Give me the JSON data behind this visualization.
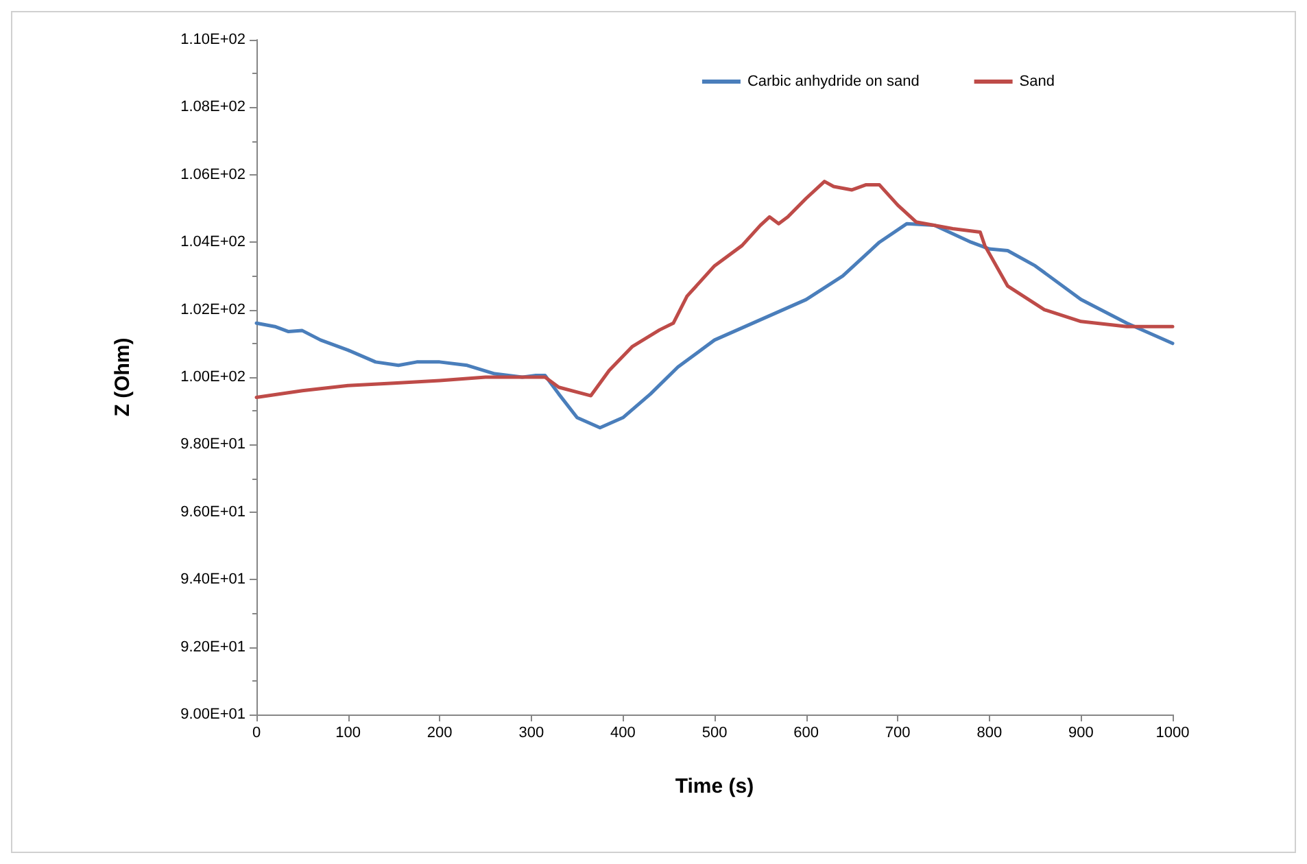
{
  "chart_data": {
    "type": "line",
    "xlabel": "Time (s)",
    "ylabel": "Z (Ohm)",
    "xlim": [
      0,
      1000
    ],
    "xticks": [
      0,
      100,
      200,
      300,
      400,
      500,
      600,
      700,
      800,
      900,
      1000
    ],
    "ylim": [
      90,
      110
    ],
    "yticks": [
      {
        "value": 90,
        "label": "9.00E+01"
      },
      {
        "value": 92,
        "label": "9.20E+01"
      },
      {
        "value": 94,
        "label": "9.40E+01"
      },
      {
        "value": 96,
        "label": "9.60E+01"
      },
      {
        "value": 98,
        "label": "9.80E+01"
      },
      {
        "value": 100,
        "label": "1.00E+02"
      },
      {
        "value": 102,
        "label": "1.02E+02"
      },
      {
        "value": 104,
        "label": "1.04E+02"
      },
      {
        "value": 106,
        "label": "1.06E+02"
      },
      {
        "value": 108,
        "label": "1.08E+02"
      },
      {
        "value": 110,
        "label": "1.10E+02"
      }
    ],
    "grid": false,
    "legend": "top right",
    "marker": "none",
    "line_style": "solid",
    "series": [
      {
        "name": "Carbic anhydride on sand",
        "color": "#4a7ebb",
        "x": [
          0,
          20,
          35,
          50,
          70,
          100,
          130,
          155,
          175,
          200,
          230,
          260,
          290,
          305,
          315,
          330,
          350,
          375,
          400,
          430,
          460,
          500,
          550,
          600,
          640,
          680,
          710,
          740,
          780,
          800,
          820,
          850,
          900,
          950,
          1000
        ],
        "values": [
          101.6,
          101.5,
          101.35,
          101.38,
          101.1,
          100.8,
          100.45,
          100.35,
          100.45,
          100.45,
          100.35,
          100.1,
          100.0,
          100.05,
          100.05,
          99.5,
          98.8,
          98.5,
          98.8,
          99.5,
          100.3,
          101.1,
          101.7,
          102.3,
          103.0,
          104.0,
          104.55,
          104.5,
          104.0,
          103.8,
          103.75,
          103.3,
          102.3,
          101.6,
          101.0
        ]
      },
      {
        "name": "Sand",
        "color": "#be4b48",
        "x": [
          0,
          50,
          100,
          150,
          200,
          250,
          300,
          315,
          330,
          365,
          385,
          410,
          440,
          455,
          470,
          500,
          530,
          550,
          560,
          570,
          580,
          600,
          620,
          630,
          650,
          665,
          680,
          700,
          720,
          760,
          790,
          795,
          820,
          860,
          900,
          950,
          1000
        ],
        "values": [
          99.4,
          99.6,
          99.75,
          99.82,
          99.9,
          100.0,
          100.0,
          100.0,
          99.7,
          99.45,
          100.2,
          100.9,
          101.4,
          101.6,
          102.4,
          103.3,
          103.9,
          104.5,
          104.75,
          104.55,
          104.75,
          105.3,
          105.8,
          105.65,
          105.55,
          105.7,
          105.7,
          105.1,
          104.6,
          104.4,
          104.3,
          103.9,
          102.7,
          102.0,
          101.65,
          101.5,
          101.5
        ]
      }
    ]
  }
}
